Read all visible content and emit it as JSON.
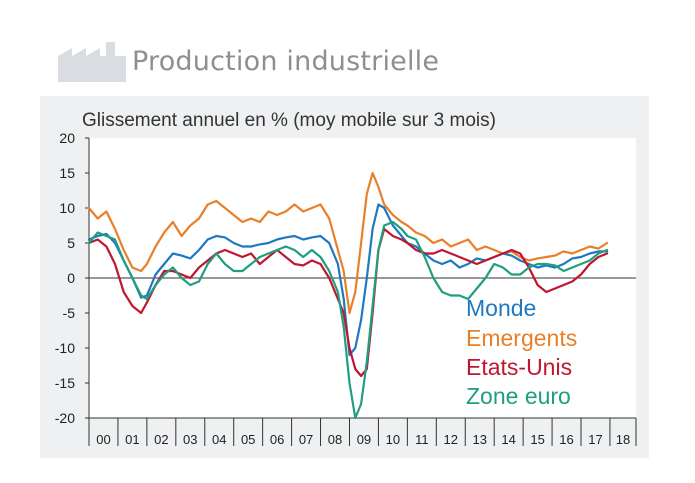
{
  "header": {
    "title": "Production industrielle",
    "icon": "factory-icon"
  },
  "colors": {
    "panel_background": "#eef0f2",
    "monde": "#1f78c1",
    "emergents": "#e8802a",
    "etats_unis": "#c0162e",
    "zone_euro": "#1f9e80"
  },
  "chart_data": {
    "type": "line",
    "title": "",
    "subtitle": "Glissement annuel en % (moy mobile sur 3 mois)",
    "xlabel": "",
    "ylabel": "",
    "ylim": [
      -20,
      20
    ],
    "xlim": [
      2000.0,
      2018.9
    ],
    "y_ticks": [
      "20",
      "15",
      "10",
      "5",
      "0",
      "-5",
      "-10",
      "-15",
      "-20"
    ],
    "x_ticks": [
      "00",
      "01",
      "02",
      "03",
      "04",
      "05",
      "06",
      "07",
      "08",
      "09",
      "10",
      "11",
      "12",
      "13",
      "14",
      "15",
      "16",
      "17",
      "18"
    ],
    "grid": false,
    "legend_position": "bottom-right",
    "series": [
      {
        "name": "Monde",
        "points": [
          [
            2000.0,
            5.5
          ],
          [
            2000.3,
            6.0
          ],
          [
            2000.6,
            6.3
          ],
          [
            2000.9,
            5.0
          ],
          [
            2001.2,
            2.5
          ],
          [
            2001.5,
            0.0
          ],
          [
            2001.8,
            -2.8
          ],
          [
            2002.0,
            -2.5
          ],
          [
            2002.3,
            0.5
          ],
          [
            2002.6,
            2.0
          ],
          [
            2002.9,
            3.5
          ],
          [
            2003.2,
            3.2
          ],
          [
            2003.5,
            2.8
          ],
          [
            2003.8,
            4.0
          ],
          [
            2004.1,
            5.5
          ],
          [
            2004.4,
            6.0
          ],
          [
            2004.7,
            5.8
          ],
          [
            2005.0,
            5.0
          ],
          [
            2005.3,
            4.5
          ],
          [
            2005.6,
            4.5
          ],
          [
            2005.9,
            4.8
          ],
          [
            2006.2,
            5.0
          ],
          [
            2006.5,
            5.5
          ],
          [
            2006.8,
            5.8
          ],
          [
            2007.1,
            6.0
          ],
          [
            2007.4,
            5.5
          ],
          [
            2007.7,
            5.8
          ],
          [
            2008.0,
            6.0
          ],
          [
            2008.3,
            5.0
          ],
          [
            2008.6,
            2.0
          ],
          [
            2008.8,
            -3.0
          ],
          [
            2009.0,
            -11.0
          ],
          [
            2009.2,
            -10.0
          ],
          [
            2009.4,
            -6.0
          ],
          [
            2009.6,
            0.0
          ],
          [
            2009.8,
            7.0
          ],
          [
            2010.0,
            10.5
          ],
          [
            2010.2,
            10.0
          ],
          [
            2010.5,
            7.5
          ],
          [
            2010.8,
            6.0
          ],
          [
            2011.0,
            5.0
          ],
          [
            2011.3,
            4.5
          ],
          [
            2011.6,
            3.5
          ],
          [
            2011.9,
            2.5
          ],
          [
            2012.2,
            2.0
          ],
          [
            2012.5,
            2.5
          ],
          [
            2012.8,
            1.5
          ],
          [
            2013.1,
            2.0
          ],
          [
            2013.4,
            2.8
          ],
          [
            2013.7,
            2.5
          ],
          [
            2014.0,
            3.0
          ],
          [
            2014.3,
            3.5
          ],
          [
            2014.6,
            3.2
          ],
          [
            2014.9,
            2.5
          ],
          [
            2015.2,
            2.0
          ],
          [
            2015.5,
            1.5
          ],
          [
            2015.8,
            1.8
          ],
          [
            2016.1,
            1.5
          ],
          [
            2016.4,
            2.0
          ],
          [
            2016.7,
            2.8
          ],
          [
            2017.0,
            3.0
          ],
          [
            2017.3,
            3.5
          ],
          [
            2017.6,
            3.8
          ],
          [
            2017.9,
            3.8
          ]
        ]
      },
      {
        "name": "Emergents",
        "points": [
          [
            2000.0,
            10.0
          ],
          [
            2000.3,
            8.5
          ],
          [
            2000.6,
            9.5
          ],
          [
            2000.9,
            7.0
          ],
          [
            2001.2,
            4.0
          ],
          [
            2001.5,
            1.5
          ],
          [
            2001.8,
            1.0
          ],
          [
            2002.0,
            2.0
          ],
          [
            2002.3,
            4.5
          ],
          [
            2002.6,
            6.5
          ],
          [
            2002.9,
            8.0
          ],
          [
            2003.2,
            6.0
          ],
          [
            2003.5,
            7.5
          ],
          [
            2003.8,
            8.5
          ],
          [
            2004.1,
            10.5
          ],
          [
            2004.4,
            11.0
          ],
          [
            2004.7,
            10.0
          ],
          [
            2005.0,
            9.0
          ],
          [
            2005.3,
            8.0
          ],
          [
            2005.6,
            8.5
          ],
          [
            2005.9,
            8.0
          ],
          [
            2006.2,
            9.5
          ],
          [
            2006.5,
            9.0
          ],
          [
            2006.8,
            9.5
          ],
          [
            2007.1,
            10.5
          ],
          [
            2007.4,
            9.5
          ],
          [
            2007.7,
            10.0
          ],
          [
            2008.0,
            10.5
          ],
          [
            2008.3,
            8.5
          ],
          [
            2008.6,
            4.0
          ],
          [
            2008.8,
            1.0
          ],
          [
            2009.0,
            -5.0
          ],
          [
            2009.2,
            -2.0
          ],
          [
            2009.4,
            5.0
          ],
          [
            2009.6,
            12.0
          ],
          [
            2009.8,
            15.0
          ],
          [
            2010.0,
            13.0
          ],
          [
            2010.2,
            10.5
          ],
          [
            2010.5,
            9.0
          ],
          [
            2010.8,
            8.0
          ],
          [
            2011.0,
            7.5
          ],
          [
            2011.3,
            6.5
          ],
          [
            2011.6,
            6.0
          ],
          [
            2011.9,
            5.0
          ],
          [
            2012.2,
            5.5
          ],
          [
            2012.5,
            4.5
          ],
          [
            2012.8,
            5.0
          ],
          [
            2013.1,
            5.5
          ],
          [
            2013.4,
            4.0
          ],
          [
            2013.7,
            4.5
          ],
          [
            2014.0,
            4.0
          ],
          [
            2014.3,
            3.5
          ],
          [
            2014.6,
            3.8
          ],
          [
            2014.9,
            3.0
          ],
          [
            2015.2,
            2.5
          ],
          [
            2015.5,
            2.8
          ],
          [
            2015.8,
            3.0
          ],
          [
            2016.1,
            3.2
          ],
          [
            2016.4,
            3.8
          ],
          [
            2016.7,
            3.5
          ],
          [
            2017.0,
            4.0
          ],
          [
            2017.3,
            4.5
          ],
          [
            2017.6,
            4.2
          ],
          [
            2017.9,
            5.0
          ]
        ]
      },
      {
        "name": "Etats-Unis",
        "points": [
          [
            2000.0,
            5.0
          ],
          [
            2000.3,
            5.5
          ],
          [
            2000.6,
            4.5
          ],
          [
            2000.9,
            2.0
          ],
          [
            2001.2,
            -2.0
          ],
          [
            2001.5,
            -4.0
          ],
          [
            2001.8,
            -5.0
          ],
          [
            2002.0,
            -3.5
          ],
          [
            2002.3,
            -1.0
          ],
          [
            2002.6,
            1.0
          ],
          [
            2002.9,
            1.0
          ],
          [
            2003.2,
            0.5
          ],
          [
            2003.5,
            0.0
          ],
          [
            2003.8,
            1.5
          ],
          [
            2004.1,
            2.5
          ],
          [
            2004.4,
            3.5
          ],
          [
            2004.7,
            4.0
          ],
          [
            2005.0,
            3.5
          ],
          [
            2005.3,
            3.0
          ],
          [
            2005.6,
            3.5
          ],
          [
            2005.9,
            2.0
          ],
          [
            2006.2,
            3.0
          ],
          [
            2006.5,
            4.0
          ],
          [
            2006.8,
            3.0
          ],
          [
            2007.1,
            2.0
          ],
          [
            2007.4,
            1.8
          ],
          [
            2007.7,
            2.5
          ],
          [
            2008.0,
            2.0
          ],
          [
            2008.3,
            0.0
          ],
          [
            2008.6,
            -3.0
          ],
          [
            2008.8,
            -5.0
          ],
          [
            2009.0,
            -10.0
          ],
          [
            2009.2,
            -13.0
          ],
          [
            2009.4,
            -14.0
          ],
          [
            2009.6,
            -13.0
          ],
          [
            2009.8,
            -5.0
          ],
          [
            2010.0,
            4.0
          ],
          [
            2010.2,
            7.0
          ],
          [
            2010.5,
            6.0
          ],
          [
            2010.8,
            5.5
          ],
          [
            2011.0,
            5.0
          ],
          [
            2011.3,
            4.0
          ],
          [
            2011.6,
            3.5
          ],
          [
            2011.9,
            3.5
          ],
          [
            2012.2,
            4.0
          ],
          [
            2012.5,
            3.5
          ],
          [
            2012.8,
            3.0
          ],
          [
            2013.1,
            2.5
          ],
          [
            2013.4,
            2.0
          ],
          [
            2013.7,
            2.5
          ],
          [
            2014.0,
            3.0
          ],
          [
            2014.3,
            3.5
          ],
          [
            2014.6,
            4.0
          ],
          [
            2014.9,
            3.5
          ],
          [
            2015.2,
            1.5
          ],
          [
            2015.5,
            -1.0
          ],
          [
            2015.8,
            -2.0
          ],
          [
            2016.1,
            -1.5
          ],
          [
            2016.4,
            -1.0
          ],
          [
            2016.7,
            -0.5
          ],
          [
            2017.0,
            0.5
          ],
          [
            2017.3,
            2.0
          ],
          [
            2017.6,
            3.0
          ],
          [
            2017.9,
            3.5
          ]
        ]
      },
      {
        "name": "Zone euro",
        "points": [
          [
            2000.0,
            5.0
          ],
          [
            2000.3,
            6.5
          ],
          [
            2000.6,
            6.0
          ],
          [
            2000.9,
            5.5
          ],
          [
            2001.2,
            2.5
          ],
          [
            2001.5,
            0.0
          ],
          [
            2001.8,
            -2.5
          ],
          [
            2002.0,
            -3.0
          ],
          [
            2002.3,
            -1.0
          ],
          [
            2002.6,
            0.5
          ],
          [
            2002.9,
            1.5
          ],
          [
            2003.2,
            0.0
          ],
          [
            2003.5,
            -1.0
          ],
          [
            2003.8,
            -0.5
          ],
          [
            2004.1,
            2.0
          ],
          [
            2004.4,
            3.5
          ],
          [
            2004.7,
            2.0
          ],
          [
            2005.0,
            1.0
          ],
          [
            2005.3,
            1.0
          ],
          [
            2005.6,
            2.0
          ],
          [
            2005.9,
            3.0
          ],
          [
            2006.2,
            3.5
          ],
          [
            2006.5,
            4.0
          ],
          [
            2006.8,
            4.5
          ],
          [
            2007.1,
            4.0
          ],
          [
            2007.4,
            3.0
          ],
          [
            2007.7,
            4.0
          ],
          [
            2008.0,
            3.0
          ],
          [
            2008.3,
            1.0
          ],
          [
            2008.6,
            -2.0
          ],
          [
            2008.8,
            -7.0
          ],
          [
            2009.0,
            -15.0
          ],
          [
            2009.2,
            -20.0
          ],
          [
            2009.4,
            -18.0
          ],
          [
            2009.6,
            -12.0
          ],
          [
            2009.8,
            -4.0
          ],
          [
            2010.0,
            4.0
          ],
          [
            2010.2,
            7.5
          ],
          [
            2010.5,
            8.0
          ],
          [
            2010.8,
            7.0
          ],
          [
            2011.0,
            6.0
          ],
          [
            2011.3,
            5.5
          ],
          [
            2011.6,
            3.0
          ],
          [
            2011.9,
            0.0
          ],
          [
            2012.2,
            -2.0
          ],
          [
            2012.5,
            -2.5
          ],
          [
            2012.8,
            -2.5
          ],
          [
            2013.1,
            -3.0
          ],
          [
            2013.4,
            -1.5
          ],
          [
            2013.7,
            0.0
          ],
          [
            2014.0,
            2.0
          ],
          [
            2014.3,
            1.5
          ],
          [
            2014.6,
            0.5
          ],
          [
            2014.9,
            0.5
          ],
          [
            2015.2,
            1.5
          ],
          [
            2015.5,
            2.0
          ],
          [
            2015.8,
            2.0
          ],
          [
            2016.1,
            1.8
          ],
          [
            2016.4,
            1.0
          ],
          [
            2016.7,
            1.5
          ],
          [
            2017.0,
            2.0
          ],
          [
            2017.3,
            2.5
          ],
          [
            2017.6,
            3.5
          ],
          [
            2017.9,
            4.0
          ]
        ]
      }
    ]
  }
}
